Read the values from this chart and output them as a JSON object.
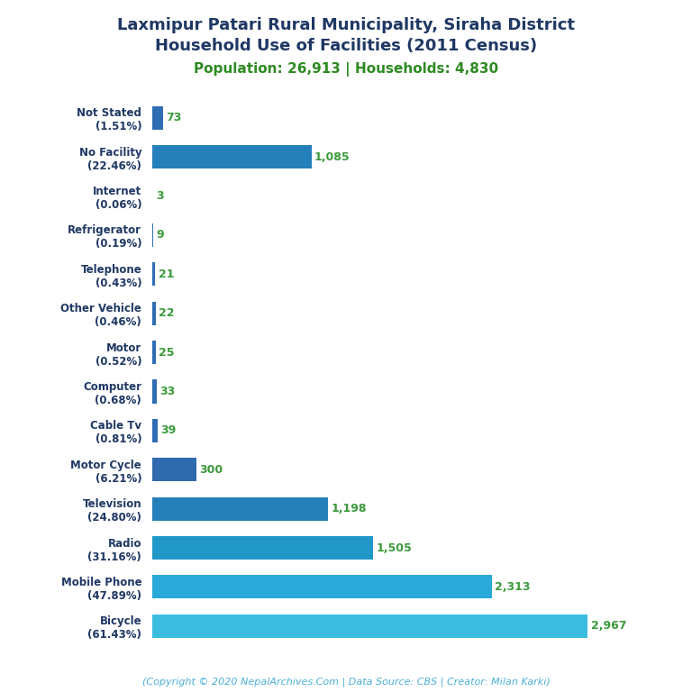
{
  "title_line1": "Laxmipur Patari Rural Municipality, Siraha District",
  "title_line2": "Household Use of Facilities (2011 Census)",
  "subtitle": "Population: 26,913 | Households: 4,830",
  "categories": [
    "Not Stated\n(1.51%)",
    "No Facility\n(22.46%)",
    "Internet\n(0.06%)",
    "Refrigerator\n(0.19%)",
    "Telephone\n(0.43%)",
    "Other Vehicle\n(0.46%)",
    "Motor\n(0.52%)",
    "Computer\n(0.68%)",
    "Cable Tv\n(0.81%)",
    "Motor Cycle\n(6.21%)",
    "Television\n(24.80%)",
    "Radio\n(31.16%)",
    "Mobile Phone\n(47.89%)",
    "Bicycle\n(61.43%)"
  ],
  "values": [
    73,
    1085,
    3,
    9,
    21,
    22,
    25,
    33,
    39,
    300,
    1198,
    1505,
    2313,
    2967
  ],
  "value_color": "#3a9a3a",
  "title_color": "#1f3864",
  "subtitle_color": "#2e8b22",
  "footer_color": "#4ab0d8",
  "footer_text": "(Copyright © 2020 NepalArchives.Com | Data Source: CBS | Creator: Milan Karki)",
  "background_color": "#ffffff",
  "xlim": [
    0,
    3300
  ],
  "figsize": [
    7.68,
    7.68
  ],
  "dpi": 100
}
